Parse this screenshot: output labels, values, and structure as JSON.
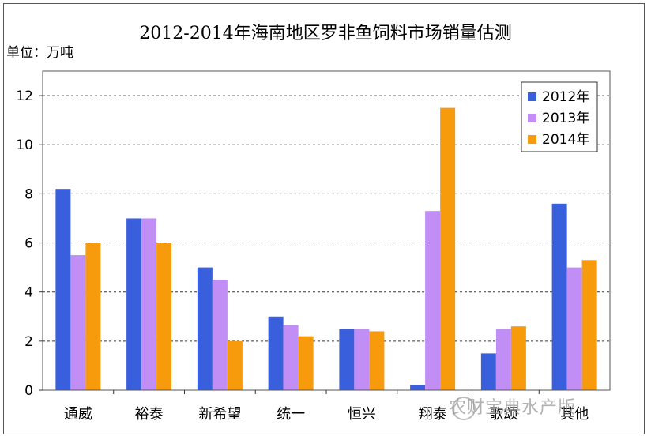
{
  "chart_data": {
    "type": "bar",
    "title": "2012-2014年海南地区罗非鱼饲料市场销量估测",
    "unit_label": "单位：万吨",
    "categories": [
      "通威",
      "裕泰",
      "新希望",
      "统一",
      "恒兴",
      "翔泰",
      "歌颂",
      "其他"
    ],
    "series": [
      {
        "name": "2012年",
        "color": "#3a5fdc",
        "values": [
          8.2,
          7.0,
          5.0,
          3.0,
          2.5,
          0.2,
          1.5,
          7.6
        ]
      },
      {
        "name": "2013年",
        "color": "#c08ef5",
        "values": [
          5.5,
          7.0,
          4.5,
          2.65,
          2.5,
          7.3,
          2.5,
          5.0
        ]
      },
      {
        "name": "2014年",
        "color": "#f79a0c",
        "values": [
          6.0,
          6.0,
          2.0,
          2.2,
          2.4,
          11.5,
          2.6,
          5.3
        ]
      }
    ],
    "ylim": [
      0,
      13
    ],
    "yticks": [
      0,
      2,
      4,
      6,
      8,
      10,
      12
    ],
    "grid": true,
    "legend_position": "top-right"
  },
  "watermark": "农财宝典水产版"
}
